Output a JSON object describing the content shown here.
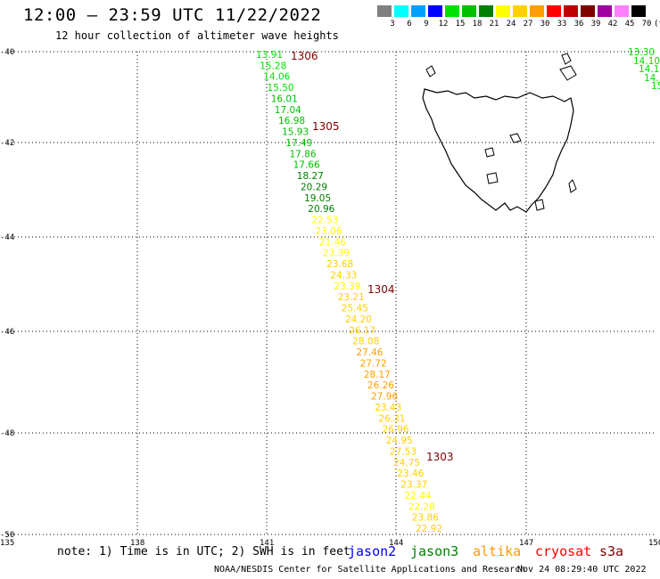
{
  "header": {
    "title": "12:00 — 23:59 UTC 11/22/2022",
    "subtitle": "12 hour collection of altimeter wave heights"
  },
  "legend": {
    "unit": "(ft)",
    "colors": [
      "#808080",
      "#00ffff",
      "#00a0ff",
      "#0000ff",
      "#00e000",
      "#00c000",
      "#008000",
      "#ffff00",
      "#ffd000",
      "#ffa000",
      "#ff0000",
      "#c00000",
      "#800000",
      "#a000a0",
      "#ff80ff",
      "#000000"
    ],
    "labels": [
      "3",
      "6",
      "9",
      "12",
      "15",
      "18",
      "21",
      "24",
      "27",
      "30",
      "33",
      "36",
      "39",
      "42",
      "45",
      "70"
    ]
  },
  "map": {
    "lat_labels": [
      "-40",
      "-42",
      "-44",
      "-46",
      "-48",
      "-50"
    ],
    "lon_labels": [
      "135",
      "138",
      "141",
      "144",
      "147",
      "150"
    ],
    "track_points": [
      {
        "v": "13.91",
        "c": "#00e000"
      },
      {
        "v": "15.28",
        "c": "#00e000"
      },
      {
        "v": "14.06",
        "c": "#00e000"
      },
      {
        "v": "15.50",
        "c": "#00e000"
      },
      {
        "v": "16.01",
        "c": "#00c000"
      },
      {
        "v": "17.04",
        "c": "#00c000"
      },
      {
        "v": "16.98",
        "c": "#00c000"
      },
      {
        "v": "15.93",
        "c": "#00c000"
      },
      {
        "v": "17.49",
        "c": "#00c000"
      },
      {
        "v": "17.86",
        "c": "#00c000"
      },
      {
        "v": "17.66",
        "c": "#00c000"
      },
      {
        "v": "18.27",
        "c": "#008000"
      },
      {
        "v": "20.29",
        "c": "#008000"
      },
      {
        "v": "19.05",
        "c": "#008000"
      },
      {
        "v": "20.96",
        "c": "#008000"
      },
      {
        "v": "22.53",
        "c": "#ffff00"
      },
      {
        "v": "23.06",
        "c": "#ffff00"
      },
      {
        "v": "21.46",
        "c": "#ffff00"
      },
      {
        "v": "23.39",
        "c": "#ffff00"
      },
      {
        "v": "23.68",
        "c": "#ffd000"
      },
      {
        "v": "24.33",
        "c": "#ffd000"
      },
      {
        "v": "23.39",
        "c": "#ffff00"
      },
      {
        "v": "23.21",
        "c": "#ffd000"
      },
      {
        "v": "25.45",
        "c": "#ffd000"
      },
      {
        "v": "24.20",
        "c": "#ffd000"
      },
      {
        "v": "26.17",
        "c": "#ffd000"
      },
      {
        "v": "28.08",
        "c": "#ffd000"
      },
      {
        "v": "27.46",
        "c": "#ffa000"
      },
      {
        "v": "27.72",
        "c": "#ffa000"
      },
      {
        "v": "28.17",
        "c": "#ffa000"
      },
      {
        "v": "26.26",
        "c": "#ffa000"
      },
      {
        "v": "27.96",
        "c": "#ffa000"
      },
      {
        "v": "23.43",
        "c": "#ffd000"
      },
      {
        "v": "26.31",
        "c": "#ffd000"
      },
      {
        "v": "26.96",
        "c": "#ffd000"
      },
      {
        "v": "24.95",
        "c": "#ffd000"
      },
      {
        "v": "27.53",
        "c": "#ffd000"
      },
      {
        "v": "24.75",
        "c": "#ffd000"
      },
      {
        "v": "23.46",
        "c": "#ffd000"
      },
      {
        "v": "23.37",
        "c": "#ffd000"
      },
      {
        "v": "22.44",
        "c": "#ffff00"
      },
      {
        "v": "22.28",
        "c": "#ffff00"
      },
      {
        "v": "23.86",
        "c": "#ffd000"
      },
      {
        "v": "22.92",
        "c": "#ffd000"
      }
    ],
    "time_labels": [
      "1306",
      "1305",
      "1304",
      "1303"
    ],
    "edge_points": [
      "13.30",
      "14.10",
      "14.1",
      "14.",
      "15"
    ]
  },
  "footer": {
    "note": "note: 1) Time is in UTC; 2) SWH is in feet",
    "satellites": [
      {
        "name": "jason2",
        "color": "#0000ff"
      },
      {
        "name": "jason3",
        "color": "#008000"
      },
      {
        "name": "altika",
        "color": "#ff9900"
      },
      {
        "name": "cryosat",
        "color": "#ff0000"
      },
      {
        "name": "s3a",
        "color": "#800000"
      }
    ],
    "credit": "NOAA/NESDIS Center for Satellite Applications and Research",
    "timestamp": "Nov 24 08:29:40 UTC 2022"
  }
}
